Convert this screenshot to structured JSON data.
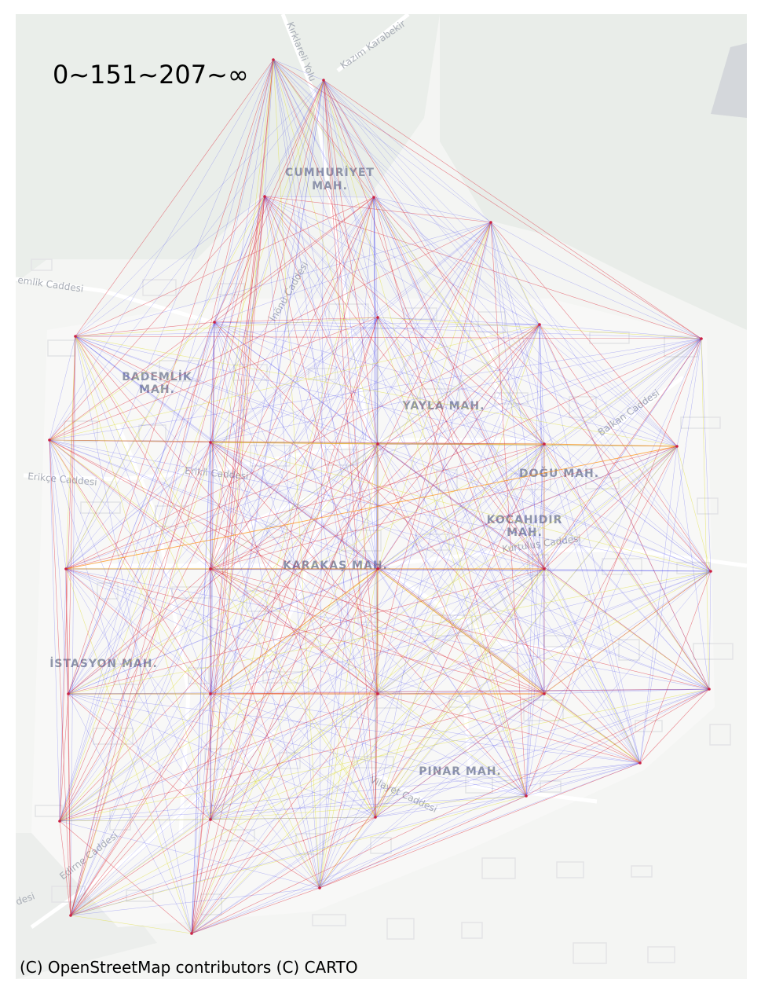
{
  "map": {
    "legend_title": "0~151~207~∞",
    "attribution": "(C) OpenStreetMap contributors (C) CARTO",
    "basemap": "CARTO Positron",
    "edge_colors": {
      "low": "#3333ee",
      "mid": "#e0e040",
      "high": "#dd2233",
      "peak": "#ff8800"
    },
    "district_labels": [
      {
        "text": "CUMHURİYET"
      },
      {
        "text": "MAH."
      },
      {
        "text": "BADEMLİK"
      },
      {
        "text": "MAH."
      },
      {
        "text": "YAYLA MAH."
      },
      {
        "text": "DOĞU MAH."
      },
      {
        "text": "KOCAHIDIR"
      },
      {
        "text": "MAH."
      },
      {
        "text": "KARAKAŞ MAH."
      },
      {
        "text": "İSTASYON MAH."
      },
      {
        "text": "PINAR MAH."
      }
    ],
    "street_labels": [
      {
        "text": "Kırklareli Yolu"
      },
      {
        "text": "Kazım Karabekir"
      },
      {
        "text": "emlik Caddesi"
      },
      {
        "text": "İnönü Caddesi"
      },
      {
        "text": "Erikli Caddesi"
      },
      {
        "text": "Erikçe Caddesi"
      },
      {
        "text": "Balkan Caddesi"
      },
      {
        "text": "Kurtuluş Caddesi"
      },
      {
        "text": "Edirne Caddesi"
      },
      {
        "text": "Vilayet Caddesi"
      },
      {
        "text": "desi"
      }
    ],
    "nodes": [
      "n01",
      "n02",
      "n03",
      "n04",
      "n05",
      "n06",
      "n07",
      "n08",
      "n09",
      "n10",
      "n11",
      "n12",
      "n13",
      "n14",
      "n15",
      "n16",
      "n17",
      "n18",
      "n19",
      "n20",
      "n21",
      "n22",
      "n23",
      "n24",
      "n25",
      "n26",
      "n27",
      "n28",
      "n29",
      "n30",
      "n31",
      "n32",
      "n33"
    ]
  }
}
